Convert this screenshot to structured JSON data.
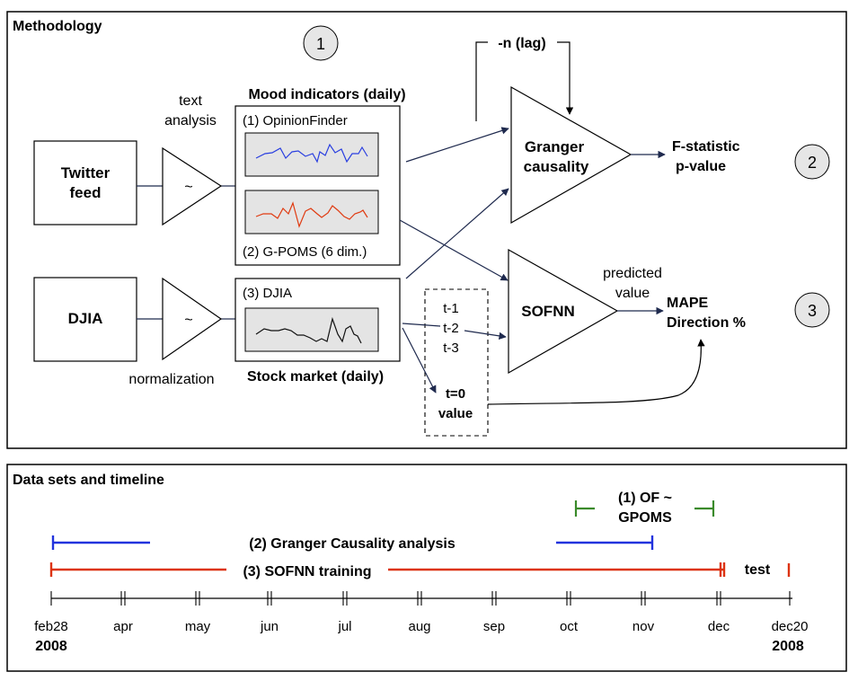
{
  "methodology": {
    "title": "Methodology",
    "step1": "1",
    "step2": "2",
    "step3": "3",
    "twitter_feed": [
      "Twitter",
      "feed"
    ],
    "djia_input": "DJIA",
    "text_analysis": [
      "text",
      "analysis"
    ],
    "normalization": "normalization",
    "amplifier_symbol": "~",
    "mood_title": "Mood indicators (daily)",
    "opinionfinder": "(1) OpinionFinder",
    "gpoms": "(2) G-POMS (6 dim.)",
    "djia_series": "(3) DJIA",
    "stock_title": "Stock market (daily)",
    "lag": "-n (lag)",
    "granger": [
      "Granger",
      "causality"
    ],
    "granger_out": [
      "F-statistic",
      "p-value"
    ],
    "sofnn": "SOFNN",
    "lags": [
      "t-1",
      "t-2",
      "t-3"
    ],
    "t0": [
      "t=0",
      "value"
    ],
    "predicted_value": [
      "predicted",
      "value"
    ],
    "sofnn_out": [
      "MAPE",
      "Direction %"
    ],
    "colors": {
      "opinionfinder_line": "#2a3fe0",
      "gpoms_line": "#e03a10",
      "djia_line": "#111111",
      "arrow": "#1f2a4e"
    }
  },
  "timeline": {
    "title": "Data sets and timeline",
    "of_gpoms": [
      "(1) OF ~",
      "GPOMS"
    ],
    "granger_label": "(2) Granger Causality analysis",
    "sofnn_label": "(3) SOFNN training",
    "test_label": "test",
    "ticks": [
      "feb28",
      "apr",
      "may",
      "jun",
      "jul",
      "aug",
      "sep",
      "oct",
      "nov",
      "dec",
      "dec20"
    ],
    "start_year": "2008",
    "end_year": "2008",
    "colors": {
      "of_gpoms": "#3a8a2a",
      "granger": "#2233dd",
      "sofnn": "#dd3311"
    }
  }
}
